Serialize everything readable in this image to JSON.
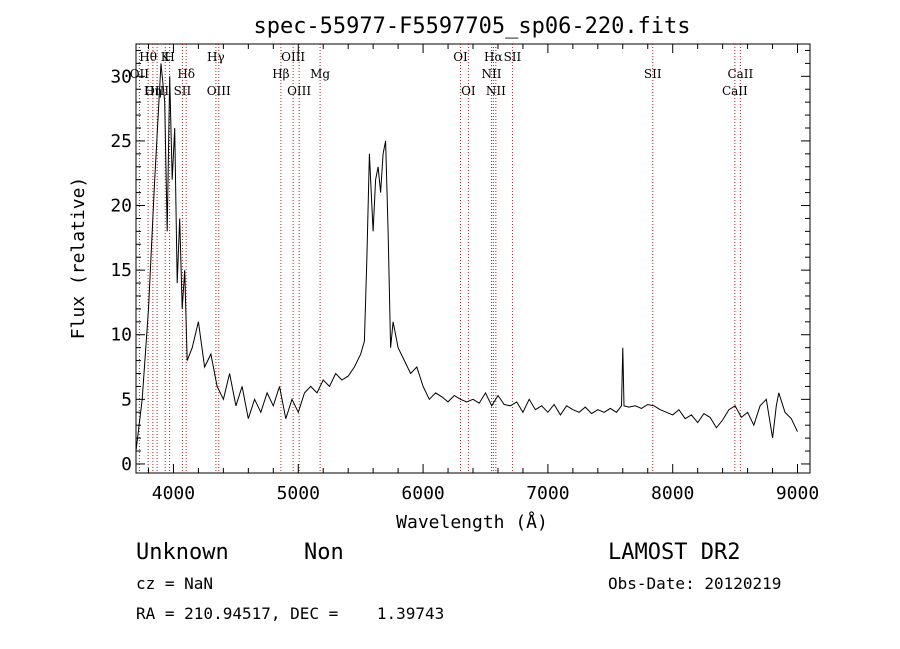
{
  "chart_data": {
    "type": "line",
    "title": "spec-55977-F5597705_sp06-220.fits",
    "xlabel": "Wavelength (Å)",
    "ylabel": "Flux (relative)",
    "xlim": [
      3700,
      9100
    ],
    "ylim": [
      -0.7,
      32.5
    ],
    "xticks": [
      4000,
      5000,
      6000,
      7000,
      8000,
      9000
    ],
    "yticks": [
      0,
      5,
      10,
      15,
      20,
      25,
      30
    ],
    "grid": false,
    "series": [
      {
        "x": [
          3700,
          3750,
          3800,
          3850,
          3900,
          3930,
          3950,
          3970,
          3990,
          4010,
          4030,
          4050,
          4070,
          4090,
          4110,
          4150,
          4200,
          4250,
          4300,
          4350,
          4400,
          4450,
          4500,
          4550,
          4600,
          4650,
          4700,
          4750,
          4800,
          4850,
          4900,
          4950,
          5000,
          5050,
          5100,
          5150,
          5200,
          5250,
          5300,
          5350,
          5400,
          5450,
          5500,
          5530,
          5550,
          5570,
          5600,
          5620,
          5640,
          5660,
          5680,
          5700,
          5720,
          5740,
          5760,
          5800,
          5850,
          5900,
          5950,
          6000,
          6050,
          6100,
          6150,
          6200,
          6250,
          6300,
          6350,
          6400,
          6450,
          6500,
          6550,
          6600,
          6650,
          6700,
          6750,
          6800,
          6850,
          6900,
          6950,
          7000,
          7050,
          7100,
          7150,
          7200,
          7250,
          7300,
          7350,
          7400,
          7450,
          7500,
          7550,
          7590,
          7600,
          7610,
          7650,
          7700,
          7750,
          7800,
          7850,
          7900,
          7950,
          8000,
          8050,
          8100,
          8150,
          8200,
          8250,
          8300,
          8350,
          8400,
          8450,
          8500,
          8550,
          8600,
          8650,
          8700,
          8750,
          8800,
          8830,
          8850,
          8900,
          8950,
          9000
        ],
        "y": [
          1.0,
          5.0,
          12.0,
          22.0,
          31.0,
          28.0,
          18.0,
          30.0,
          22.0,
          26.0,
          14.0,
          19.0,
          12.0,
          15.0,
          8.0,
          9.0,
          11.0,
          7.5,
          8.5,
          6.0,
          5.0,
          7.0,
          4.5,
          6.0,
          3.5,
          5.0,
          4.0,
          5.5,
          4.5,
          6.0,
          3.5,
          5.0,
          4.0,
          5.5,
          6.0,
          5.5,
          6.5,
          6.0,
          7.0,
          6.5,
          6.8,
          7.5,
          8.5,
          9.5,
          16.0,
          24.0,
          18.0,
          22.0,
          23.0,
          21.0,
          24.0,
          25.0,
          18.0,
          9.0,
          11.0,
          9.0,
          8.0,
          7.0,
          7.5,
          6.0,
          5.0,
          5.5,
          5.2,
          4.8,
          5.3,
          5.0,
          4.8,
          5.0,
          4.7,
          5.5,
          4.5,
          5.3,
          4.6,
          4.5,
          4.8,
          4.0,
          5.0,
          4.2,
          4.5,
          4.0,
          4.6,
          3.8,
          4.5,
          4.2,
          4.0,
          4.4,
          3.9,
          4.2,
          4.0,
          4.3,
          4.0,
          4.5,
          9.0,
          4.5,
          4.4,
          4.5,
          4.3,
          4.6,
          4.5,
          4.2,
          4.0,
          3.8,
          4.2,
          3.5,
          3.8,
          3.2,
          3.9,
          3.6,
          2.8,
          3.4,
          4.2,
          4.5,
          3.6,
          4.0,
          3.0,
          4.5,
          5.0,
          2.0,
          4.5,
          5.5,
          4.0,
          3.5,
          2.5
        ]
      }
    ],
    "line_markers": [
      {
        "label": "Hθ",
        "x": 3797,
        "tier": 1
      },
      {
        "label": "OII",
        "x": 3727,
        "tier": 2
      },
      {
        "label": "OIII",
        "x": 3869,
        "tier": 3
      },
      {
        "label": "Hη",
        "x": 3835,
        "tier": 3
      },
      {
        "label": "K",
        "x": 3934,
        "tier": 1
      },
      {
        "label": "H",
        "x": 3969,
        "tier": 1
      },
      {
        "label": "Hδ",
        "x": 4102,
        "tier": 2
      },
      {
        "label": "SII",
        "x": 4072,
        "tier": 3
      },
      {
        "label": "Hγ",
        "x": 4340,
        "tier": 1
      },
      {
        "label": "OIII",
        "x": 4363,
        "tier": 3
      },
      {
        "label": "Hβ",
        "x": 4861,
        "tier": 2
      },
      {
        "label": "OIII",
        "x": 4959,
        "tier": 1
      },
      {
        "label": "OIII",
        "x": 5007,
        "tier": 3
      },
      {
        "label": "Mg",
        "x": 5175,
        "tier": 2
      },
      {
        "label": "OI",
        "x": 6300,
        "tier": 1
      },
      {
        "label": "OI",
        "x": 6363,
        "tier": 3
      },
      {
        "label": "Hα",
        "x": 6563,
        "tier": 1
      },
      {
        "label": "NII",
        "x": 6548,
        "tier": 2
      },
      {
        "label": "NII",
        "x": 6583,
        "tier": 3
      },
      {
        "label": "SII",
        "x": 6716,
        "tier": 1
      },
      {
        "label": "SII",
        "x": 7840,
        "tier": 2
      },
      {
        "label": "CaII",
        "x": 8542,
        "tier": 2
      },
      {
        "label": "CaII",
        "x": 8498,
        "tier": 3
      }
    ]
  },
  "info": {
    "class_label": "Unknown",
    "subclass_label": "Non",
    "survey": "LAMOST DR2",
    "cz": "cz = NaN",
    "obs_date": "Obs-Date: 20120219",
    "radec": "RA = 210.94517, DEC =    1.39743"
  }
}
